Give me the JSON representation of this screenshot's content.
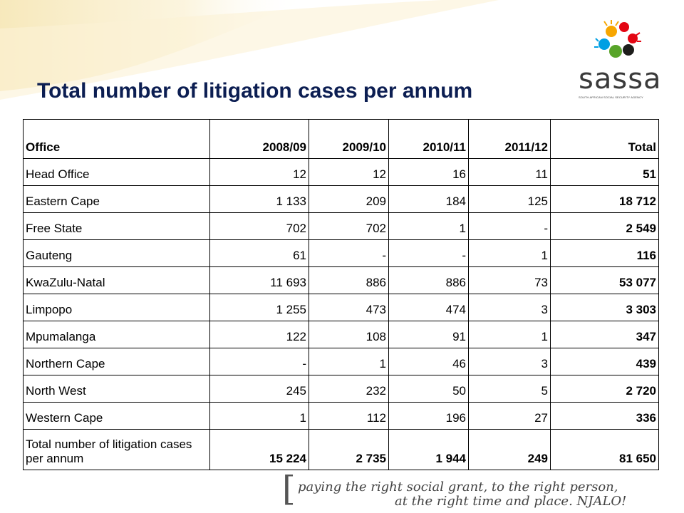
{
  "title": "Total number of litigation cases per annum",
  "logo": {
    "name": "sassa",
    "subtitle": "SOUTH AFRICAN SOCIAL SECURITY AGENCY",
    "colors": [
      "#e30613",
      "#f7a600",
      "#009fe3",
      "#58a429",
      "#1d1d1b"
    ]
  },
  "table": {
    "headers": [
      "Office",
      "2008/09",
      "2009/10",
      "2010/11",
      "2011/12",
      "Total"
    ],
    "rows": [
      [
        "Head Office",
        "12",
        "12",
        "16",
        "11",
        "51"
      ],
      [
        "Eastern Cape",
        "1 133",
        "209",
        "184",
        "125",
        "18 712"
      ],
      [
        "Free State",
        "702",
        "702",
        "1",
        "-",
        "2 549"
      ],
      [
        "Gauteng",
        "61",
        "-",
        "-",
        "1",
        "116"
      ],
      [
        "KwaZulu-Natal",
        "11 693",
        "886",
        "886",
        "73",
        "53 077"
      ],
      [
        "Limpopo",
        "1 255",
        "473",
        "474",
        "3",
        "3 303"
      ],
      [
        "Mpumalanga",
        "122",
        "108",
        "91",
        "1",
        "347"
      ],
      [
        "Northern Cape",
        "-",
        "1",
        "46",
        "3",
        "439"
      ],
      [
        "North West",
        "245",
        "232",
        "50",
        "5",
        "2 720"
      ],
      [
        "Western Cape",
        "1",
        "112",
        "196",
        "27",
        "336"
      ]
    ],
    "total_row": [
      "Total number of litigation cases per annum",
      "15 224",
      "2 735",
      "1 944",
      "249",
      "81 650"
    ]
  },
  "footer": {
    "bracket": "[",
    "line1": "paying the right social grant, to the right person,",
    "line2": "at the right time and place. NJALO!"
  },
  "colors": {
    "title": "#0c1e52",
    "swoosh": "#f6e6b4"
  }
}
